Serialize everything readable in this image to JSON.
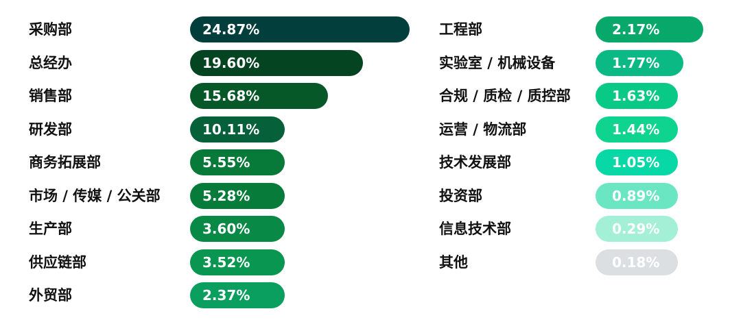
{
  "chart_data": {
    "type": "bar",
    "orientation": "horizontal",
    "title": "",
    "xlabel": "",
    "ylabel": "",
    "grid": false,
    "legend": "none",
    "value_unit": "%",
    "columns": [
      {
        "categories": [
          "采购部",
          "总经办",
          "销售部",
          "研发部",
          "商务拓展部",
          "市场 / 传媒 / 公关部",
          "生产部",
          "供应链部",
          "外贸部"
        ],
        "values": [
          24.87,
          19.6,
          15.68,
          10.11,
          5.55,
          5.28,
          3.6,
          3.52,
          2.37
        ],
        "value_labels": [
          "24.87%",
          "19.60%",
          "15.68%",
          "10.11%",
          "5.55%",
          "5.28%",
          "3.60%",
          "3.52%",
          "2.37%"
        ],
        "colors": [
          "#023e3b",
          "#044421",
          "#065828",
          "#066039",
          "#077a39",
          "#077b3a",
          "#088946",
          "#089650",
          "#0a9f5e"
        ]
      },
      {
        "categories": [
          "工程部",
          "实验室 / 机械设备",
          "合规 / 质检 / 质控部",
          "运营 / 物流部",
          "技术发展部",
          "投资部",
          "信息技术部",
          "其他"
        ],
        "values": [
          2.17,
          1.77,
          1.63,
          1.44,
          1.05,
          0.89,
          0.29,
          0.18
        ],
        "value_labels": [
          "2.17%",
          "1.77%",
          "1.63%",
          "1.44%",
          "1.05%",
          "0.89%",
          "0.29%",
          "0.18%"
        ],
        "colors": [
          "#08a86a",
          "#0ab983",
          "#08c986",
          "#0ed48f",
          "#08d8a6",
          "#6ae6c2",
          "#a3f0d7",
          "#dcdfe2"
        ]
      }
    ]
  }
}
